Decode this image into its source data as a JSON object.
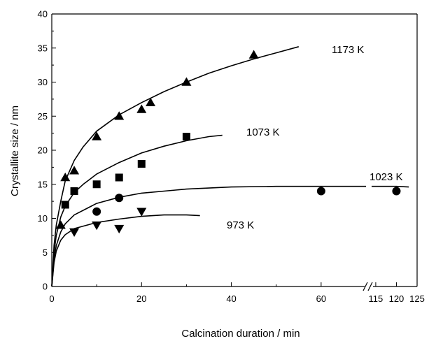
{
  "chart_data": {
    "type": "scatter",
    "title": "",
    "xlabel": "Calcination duration / min",
    "ylabel": "Crystallite size / nm",
    "ylim": [
      0,
      40
    ],
    "yticks": [
      0,
      5,
      10,
      15,
      20,
      25,
      30,
      35,
      40
    ],
    "x_axis_broken": true,
    "x_segment_1": {
      "range": [
        0,
        70
      ],
      "ticks": [
        0,
        20,
        40,
        60
      ]
    },
    "x_segment_2": {
      "range": [
        114,
        125
      ],
      "ticks": [
        115,
        120,
        125
      ]
    },
    "grid": false,
    "series": [
      {
        "name": "1173 K",
        "marker": "triangle-up",
        "points": [
          [
            2,
            9
          ],
          [
            3,
            16
          ],
          [
            5,
            17
          ],
          [
            10,
            22
          ],
          [
            15,
            25
          ],
          [
            20,
            26
          ],
          [
            22,
            27
          ],
          [
            30,
            30
          ],
          [
            45,
            34
          ]
        ],
        "fit": [
          [
            0,
            0
          ],
          [
            0.5,
            6
          ],
          [
            1,
            9
          ],
          [
            2,
            12.5
          ],
          [
            3,
            15.5
          ],
          [
            5,
            18.5
          ],
          [
            7,
            20.5
          ],
          [
            10,
            22.8
          ],
          [
            15,
            25.2
          ],
          [
            20,
            27
          ],
          [
            25,
            28.6
          ],
          [
            30,
            30
          ],
          [
            35,
            31.3
          ],
          [
            40,
            32.4
          ],
          [
            45,
            33.4
          ],
          [
            50,
            34.3
          ],
          [
            55,
            35.2
          ]
        ]
      },
      {
        "name": "1073 K",
        "marker": "square",
        "points": [
          [
            3,
            12
          ],
          [
            5,
            14
          ],
          [
            10,
            15
          ],
          [
            15,
            16
          ],
          [
            20,
            18
          ],
          [
            30,
            22
          ]
        ],
        "fit": [
          [
            0,
            0
          ],
          [
            0.5,
            5
          ],
          [
            1,
            7.5
          ],
          [
            2,
            10.2
          ],
          [
            3,
            11.8
          ],
          [
            5,
            13.8
          ],
          [
            7,
            15
          ],
          [
            10,
            16.5
          ],
          [
            15,
            18.2
          ],
          [
            20,
            19.6
          ],
          [
            25,
            20.6
          ],
          [
            30,
            21.4
          ],
          [
            35,
            22
          ],
          [
            38,
            22.2
          ]
        ]
      },
      {
        "name": "1023 K",
        "marker": "circle",
        "points": [
          [
            10,
            11
          ],
          [
            15,
            13
          ],
          [
            60,
            14
          ],
          [
            120,
            14
          ]
        ],
        "fit": [
          [
            0,
            0
          ],
          [
            0.5,
            4
          ],
          [
            1,
            6
          ],
          [
            2,
            8
          ],
          [
            3,
            9.2
          ],
          [
            5,
            10.5
          ],
          [
            10,
            12.2
          ],
          [
            15,
            13.1
          ],
          [
            20,
            13.7
          ],
          [
            30,
            14.3
          ],
          [
            40,
            14.6
          ],
          [
            50,
            14.7
          ],
          [
            60,
            14.7
          ],
          [
            70,
            14.7
          ],
          [
            114,
            14.7
          ],
          [
            120,
            14.7
          ],
          [
            123,
            14.6
          ]
        ]
      },
      {
        "name": "973 K",
        "marker": "triangle-down",
        "points": [
          [
            5,
            8
          ],
          [
            10,
            9
          ],
          [
            15,
            8.5
          ],
          [
            20,
            11
          ]
        ],
        "fit": [
          [
            0,
            0
          ],
          [
            0.5,
            3.5
          ],
          [
            1,
            5.2
          ],
          [
            2,
            6.8
          ],
          [
            3,
            7.6
          ],
          [
            5,
            8.5
          ],
          [
            10,
            9.4
          ],
          [
            15,
            9.9
          ],
          [
            20,
            10.3
          ],
          [
            25,
            10.5
          ],
          [
            30,
            10.5
          ],
          [
            33,
            10.4
          ]
        ]
      }
    ]
  }
}
